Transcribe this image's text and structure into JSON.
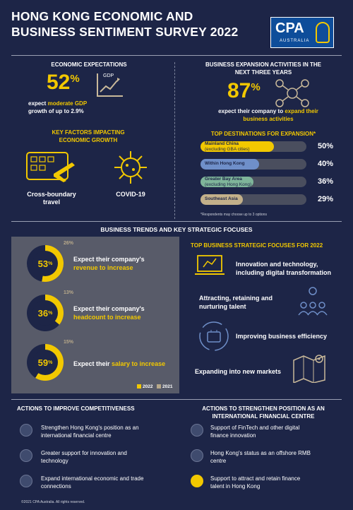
{
  "header": {
    "title_line1": "HONG KONG ECONOMIC AND",
    "title_line2": "BUSINESS SENTIMENT SURVEY 2022",
    "logo_text": "CPA",
    "logo_sub": "AUSTRALIA"
  },
  "economic": {
    "heading": "ECONOMIC EXPECTATIONS",
    "pct": "52",
    "pct_sign": "%",
    "gdp_label": "GDP",
    "desc_pre": "expect ",
    "desc_highlight": "moderate GDP",
    "desc_line2": "growth of up to 2.9%"
  },
  "factors": {
    "heading_line1": "KEY FACTORS IMPACTING",
    "heading_line2": "ECONOMIC GROWTH",
    "item1_line1": "Cross-boundary",
    "item1_line2": "travel",
    "item2": "COVID-19"
  },
  "expansion": {
    "heading_line1": "BUSINESS EXPANSION ACTIVITIES IN THE",
    "heading_line2": "NEXT THREE  YEARS",
    "pct": "87",
    "pct_sign": "%",
    "desc_pre": "expect their company to ",
    "desc_highlight_1": "expand their",
    "desc_highlight_2": "business activities"
  },
  "destinations": {
    "heading": "TOP DESTINATIONS FOR EXPANSION*",
    "note": "*Respondents may choose up to 3 options",
    "items": [
      {
        "label1": "Mainland  China",
        "label2": "(excluding GBA cities)",
        "pct_text": "50%",
        "value": 50,
        "color": "#f2c800"
      },
      {
        "label1": "Within Hong Kong",
        "label2": "",
        "pct_text": "40%",
        "value": 40,
        "color": "#6f8fc9"
      },
      {
        "label1": "Greater Bay Area",
        "label2": "(excluding Hong Kong)",
        "pct_text": "36%",
        "value": 36,
        "color": "#7fb59a"
      },
      {
        "label1": "Southeast Asia",
        "label2": "",
        "pct_text": "29%",
        "value": 29,
        "color": "#c3b08a"
      }
    ]
  },
  "trends": {
    "heading": "BUSINESS TRENDS AND KEY STRATEGIC FOCUSES",
    "legend_2022": "2022",
    "legend_2021": "2021",
    "items": [
      {
        "pct_2022": "53",
        "pct_2021": "26%",
        "line1": "Expect their company's",
        "line2": "revenue to increase",
        "v2022": 53,
        "v2021": 26
      },
      {
        "pct_2022": "36",
        "pct_2021": "13%",
        "line1": "Expect their company's",
        "line2": "headcount to increase",
        "v2022": 36,
        "v2021": 13
      },
      {
        "pct_2022": "59",
        "pct_2021": "15%",
        "line1": "Expect their ",
        "line2": "salary to increase",
        "v2022": 59,
        "v2021": 15
      }
    ]
  },
  "focuses": {
    "heading": "TOP BUSINESS STRATEGIC FOCUSES FOR 2022",
    "items": [
      {
        "line1": "Innovation and technology,",
        "line2": "including digital transformation"
      },
      {
        "line1": "Attracting, retaining and",
        "line2": "nurturing talent"
      },
      {
        "line1": "Improving business efficiency",
        "line2": ""
      },
      {
        "line1": "Expanding into new markets",
        "line2": ""
      }
    ]
  },
  "competitiveness": {
    "heading": "ACTIONS TO IMPROVE COMPETITIVENESS",
    "items": [
      {
        "line1": "Strengthen Hong Kong's position as an",
        "line2": "international financial centre"
      },
      {
        "line1": "Greater support for innovation and",
        "line2": "technology"
      },
      {
        "line1": "Expand international economic and trade",
        "line2": "connections"
      }
    ]
  },
  "financial": {
    "heading_line1": "ACTIONS TO STRENGTHEN POSITION AS AN",
    "heading_line2": "INTERNATIONAL FINANCIAL CENTRE",
    "items": [
      {
        "line1": "Support of FinTech and other digital",
        "line2": "finance innovation"
      },
      {
        "line1": "Hong Kong's status as an offshore RMB",
        "line2": "centre"
      },
      {
        "line1": "Support to attract and retain finance",
        "line2": "talent in Hong Kong"
      }
    ]
  },
  "footer": {
    "text": "©2021 CPA Australia. All rights reserved."
  }
}
